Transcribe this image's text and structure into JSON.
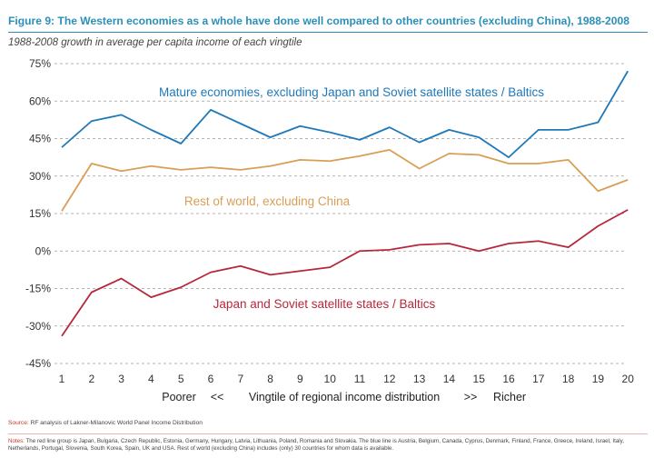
{
  "figure": {
    "title": "Figure 9:  The Western economies as a whole have done well compared to other countries (excluding China), 1988-2008",
    "subtitle": "1988-2008 growth in average per capita income of each vingtile"
  },
  "footer": {
    "source_label": "Source:",
    "source_text": "RF analysis of Lakner-Milanovic World Panel Income Distribution",
    "notes_label": "Notes:",
    "notes_text": "The red line group is Japan, Bulgaria, Czech Republic, Estonia, Germany, Hungary, Latvia, Lithuania, Poland, Romania and Slovakia. The blue line is Austria, Belgium, Canada, Cyprus, Denmark, Finland, France, Greece, Ireland, Israel, Italy, Netherlands, Portugal, Slovenia, South Korea, Spain, UK and USA. Rest of world (excluding China) includes (only) 30 countries for whom data is available."
  },
  "chart_data": {
    "type": "line",
    "x": [
      1,
      2,
      3,
      4,
      5,
      6,
      7,
      8,
      9,
      10,
      11,
      12,
      13,
      14,
      15,
      16,
      17,
      18,
      19,
      20
    ],
    "xlabel": {
      "left": "Poorer",
      "left_arrows": "<<",
      "center": "Vingtile of regional income distribution",
      "right_arrows": ">>",
      "right": "Richer"
    },
    "ylim": [
      -45,
      75
    ],
    "yticks": [
      75,
      60,
      45,
      30,
      15,
      0,
      -15,
      -30,
      -45
    ],
    "ytick_labels": [
      "75%",
      "60%",
      "45%",
      "30%",
      "15%",
      "0%",
      "-15%",
      "-30%",
      "-45%"
    ],
    "grid": "dashed horizontal",
    "series": [
      {
        "name": "Mature economies, excluding Japan and Soviet satellite states / Baltics",
        "color": "#1f78b8",
        "values": [
          41.5,
          52,
          54.5,
          48.5,
          43,
          56.5,
          51,
          45.5,
          50,
          47.5,
          44.5,
          49.5,
          43.5,
          48.5,
          45.5,
          37.5,
          48.5,
          48.5,
          51.5,
          72
        ]
      },
      {
        "name": "Rest of world, excluding China",
        "color": "#d89f55",
        "values": [
          16,
          35,
          32,
          34,
          32.5,
          33.5,
          32.5,
          34,
          36.5,
          36,
          38,
          40.5,
          33,
          39,
          38.5,
          35,
          35,
          36.5,
          24,
          28.5
        ]
      },
      {
        "name": "Japan and Soviet satellite states / Baltics",
        "color": "#b5283c",
        "values": [
          -34,
          -16.5,
          -11,
          -18.5,
          -14.5,
          -8.5,
          -6,
          -9.5,
          -8,
          -6.5,
          0,
          0.5,
          2.5,
          3,
          0,
          3,
          4,
          1.5,
          10,
          16.5
        ]
      }
    ]
  }
}
